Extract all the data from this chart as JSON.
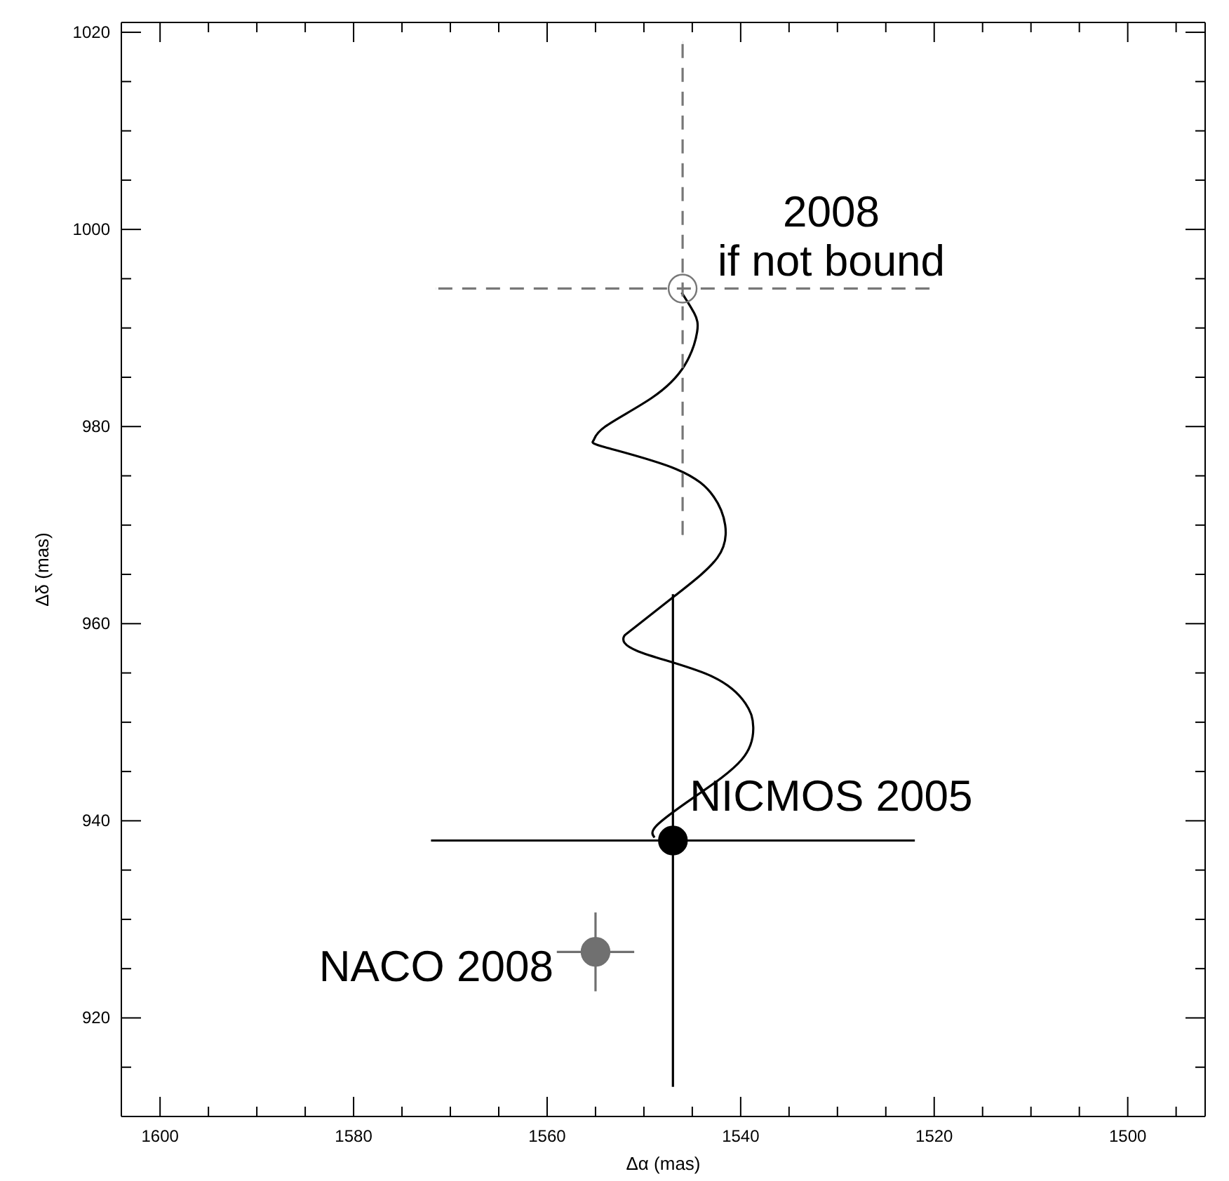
{
  "chart_data": {
    "type": "scatter",
    "xlabel": "Δα (mas)",
    "ylabel": "Δδ (mas)",
    "xlim": [
      1604,
      1492
    ],
    "ylim": [
      910,
      1021
    ],
    "xticks": [
      1600,
      {
        "value": 1595,
        "label": null
      },
      {
        "value": 1590,
        "label": null
      },
      {
        "value": 1585,
        "label": null
      },
      1580,
      {
        "value": 1575,
        "label": null
      },
      {
        "value": 1570,
        "label": null
      },
      {
        "value": 1565,
        "label": null
      },
      1560,
      {
        "value": 1555,
        "label": null
      },
      {
        "value": 1550,
        "label": null
      },
      {
        "value": 1545,
        "label": null
      },
      1540,
      {
        "value": 1535,
        "label": null
      },
      {
        "value": 1530,
        "label": null
      },
      {
        "value": 1525,
        "label": null
      },
      1520,
      {
        "value": 1515,
        "label": null
      },
      {
        "value": 1510,
        "label": null
      },
      {
        "value": 1505,
        "label": null
      },
      1500,
      {
        "value": 1495,
        "label": null
      }
    ],
    "yticks": [
      {
        "value": 915,
        "label": null
      },
      920,
      {
        "value": 925,
        "label": null
      },
      {
        "value": 930,
        "label": null
      },
      {
        "value": 935,
        "label": null
      },
      940,
      {
        "value": 945,
        "label": null
      },
      {
        "value": 950,
        "label": null
      },
      {
        "value": 955,
        "label": null
      },
      960,
      {
        "value": 965,
        "label": null
      },
      {
        "value": 970,
        "label": null
      },
      {
        "value": 975,
        "label": null
      },
      980,
      {
        "value": 985,
        "label": null
      },
      {
        "value": 990,
        "label": null
      },
      {
        "value": 995,
        "label": null
      },
      1000,
      {
        "value": 1005,
        "label": null
      },
      {
        "value": 1010,
        "label": null
      },
      {
        "value": 1015,
        "label": null
      },
      1020
    ],
    "marker": "circle",
    "series": [
      {
        "type": "line",
        "color": "#000000",
        "marker": "none",
        "x": [
          1548.9,
          1548.7,
          1544.8,
          1539.9,
          1538.7,
          1539.5,
          1543.3,
          1550.6,
          1552.1,
          1551.1,
          1546.7,
          1542.4,
          1541.6,
          1542.8,
          1546.7,
          1554.0,
          1555.2,
          1554.0,
          1549.2,
          1545.8,
          1544.5,
          1544.8,
          1546.1
        ],
        "values": [
          938.3,
          939.5,
          942.4,
          946.2,
          949.5,
          951.9,
          954.8,
          957.2,
          958.6,
          959.5,
          962.9,
          966.7,
          970.0,
          972.9,
          975.7,
          977.9,
          978.6,
          980.0,
          982.9,
          986.2,
          989.6,
          991.5,
          993.6
        ]
      },
      {
        "color": "#000000",
        "x": [
          1547
        ],
        "values": [
          938
        ],
        "errors": [
          25
        ],
        "xerrors": [
          25
        ],
        "line_style": "solid"
      },
      {
        "color": "#777777",
        "x": [
          1546
        ],
        "values": [
          994
        ],
        "errors": [
          25
        ],
        "xerrors": [
          25.5
        ],
        "line_style": "dashed"
      },
      {
        "color": "#707070",
        "x": [
          1555
        ],
        "values": [
          926.7
        ],
        "errors": [
          4
        ],
        "xerrors": [
          4
        ],
        "line_style": "solid"
      }
    ],
    "annotations": [
      {
        "text": "NICMOS 2005",
        "x": 1547,
        "y": 938
      },
      {
        "text": "2008\nif not bound",
        "x": 1546,
        "y": 994
      },
      {
        "text": "NACO 2008",
        "x": 1555,
        "y": 926.7
      }
    ]
  }
}
